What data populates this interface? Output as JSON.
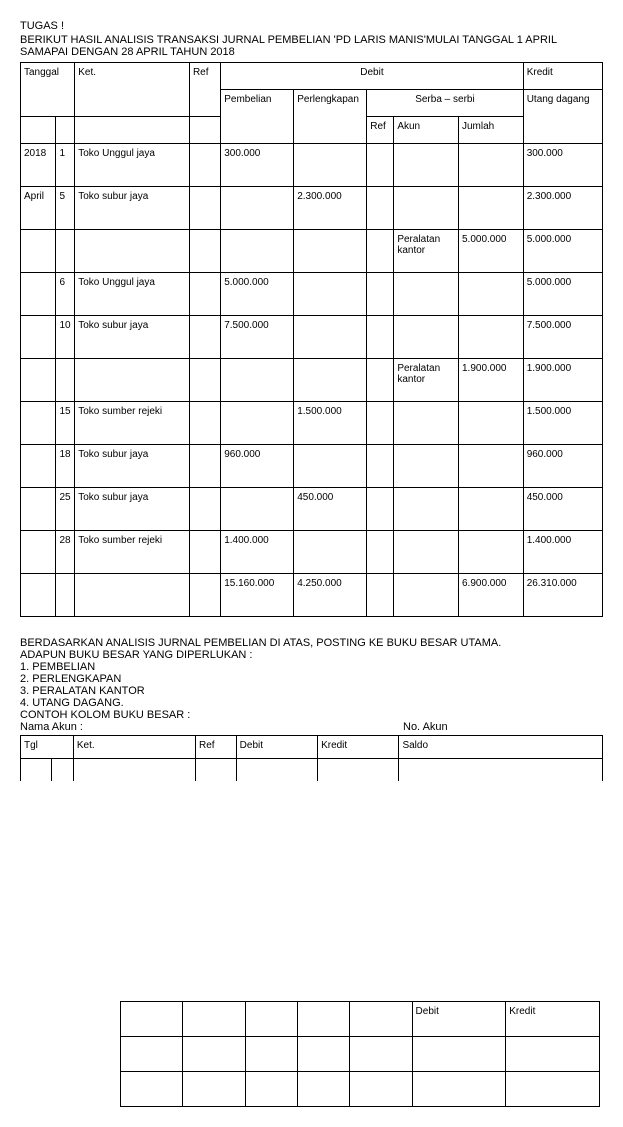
{
  "header": {
    "line1": "TUGAS !",
    "line2": "BERIKUT HASIL ANALISIS TRANSAKSI JURNAL PEMBELIAN 'PD LARIS MANIS'MULAI TANGGAL 1 APRIL SAMAPAI DENGAN 28 APRIL TAHUN 2018"
  },
  "mainTable": {
    "headers": {
      "tanggal": "Tanggal",
      "ket": "Ket.",
      "ref": "Ref",
      "debit": "Debit",
      "kredit": "Kredit",
      "pembelian": "Pembelian",
      "perlengkapan": "Perlengkapan",
      "serba": "Serba – serbi",
      "utang": "Utang dagang",
      "ref2": "Ref",
      "akun": "Akun",
      "jumlah": "Jumlah"
    },
    "rows": [
      {
        "y": "2018",
        "d": "1",
        "ket": "Toko Unggul jaya",
        "ref": "",
        "pemb": "300.000",
        "perl": "",
        "r2": "",
        "akun": "",
        "jml": "",
        "utang": "300.000"
      },
      {
        "y": "April",
        "d": "5",
        "ket": "Toko subur jaya",
        "ref": "",
        "pemb": "",
        "perl": "2.300.000",
        "r2": "",
        "akun": "",
        "jml": "",
        "utang": "2.300.000"
      },
      {
        "y": "",
        "d": "",
        "ket": "",
        "ref": "",
        "pemb": "",
        "perl": "",
        "r2": "",
        "akun": "Peralatan kantor",
        "jml": "5.000.000",
        "utang": "5.000.000"
      },
      {
        "y": "",
        "d": "6",
        "ket": "Toko Unggul jaya",
        "ref": "",
        "pemb": "5.000.000",
        "perl": "",
        "r2": "",
        "akun": "",
        "jml": "",
        "utang": "5.000.000"
      },
      {
        "y": "",
        "d": "10",
        "ket": "Toko subur jaya",
        "ref": "",
        "pemb": "7.500.000",
        "perl": "",
        "r2": "",
        "akun": "",
        "jml": "",
        "utang": "7.500.000"
      },
      {
        "y": "",
        "d": "",
        "ket": "",
        "ref": "",
        "pemb": "",
        "perl": "",
        "r2": "",
        "akun": "Peralatan kantor",
        "jml": "1.900.000",
        "utang": "1.900.000"
      },
      {
        "y": "",
        "d": "15",
        "ket": "Toko sumber rejeki",
        "ref": "",
        "pemb": "",
        "perl": "1.500.000",
        "r2": "",
        "akun": "",
        "jml": "",
        "utang": "1.500.000"
      },
      {
        "y": "",
        "d": "18",
        "ket": "Toko subur jaya",
        "ref": "",
        "pemb": "960.000",
        "perl": "",
        "r2": "",
        "akun": "",
        "jml": "",
        "utang": "960.000"
      },
      {
        "y": "",
        "d": "25",
        "ket": "Toko subur jaya",
        "ref": "",
        "pemb": "",
        "perl": "450.000",
        "r2": "",
        "akun": "",
        "jml": "",
        "utang": "450.000"
      },
      {
        "y": "",
        "d": "28",
        "ket": "Toko sumber rejeki",
        "ref": "",
        "pemb": "1.400.000",
        "perl": "",
        "r2": "",
        "akun": "",
        "jml": "",
        "utang": "1.400.000"
      },
      {
        "y": "",
        "d": "",
        "ket": "",
        "ref": "",
        "pemb": "15.160.000",
        "perl": "4.250.000",
        "r2": "",
        "akun": "",
        "jml": "6.900.000",
        "utang": "26.310.000"
      }
    ]
  },
  "section": {
    "l1": "BERDASARKAN ANALISIS  JURNAL PEMBELIAN DI ATAS, POSTING KE BUKU BESAR UTAMA.",
    "l2": "ADAPUN BUKU BESAR YANG DIPERLUKAN :",
    "l3": "1. PEMBELIAN",
    "l4": "2. PERLENGKAPAN",
    "l5": "3. PERALATAN KANTOR",
    "l6": "4. UTANG DAGANG.",
    "l7": "CONTOH KOLOM BUKU BESAR :",
    "nama": "Nama Akun :",
    "no": "No. Akun"
  },
  "ledgerHeaders": {
    "tgl": "Tgl",
    "ket": "Ket.",
    "ref": "Ref",
    "debit": "Debit",
    "kredit": "Kredit",
    "saldo": "Saldo"
  },
  "bottomHeaders": {
    "debit": "Debit",
    "kredit": "Kredit"
  }
}
